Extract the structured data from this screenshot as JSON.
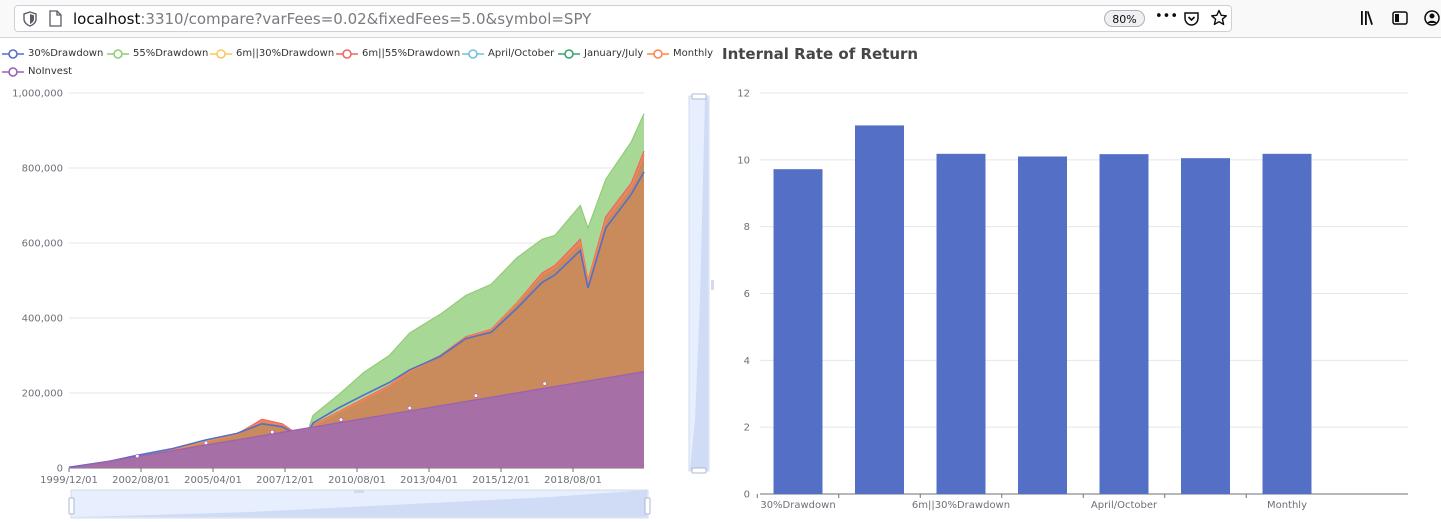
{
  "browser": {
    "url_host": "localhost",
    "url_rest": ":3310/compare?varFees=0.02&fixedFees=5.0&symbol=SPY",
    "zoom": "80%",
    "more_label": "•••"
  },
  "colors": {
    "series": [
      "#5470c6",
      "#91cc75",
      "#fac858",
      "#ee6666",
      "#73c0de",
      "#3ba272",
      "#fc8452",
      "#9a60b4"
    ],
    "bar": "#5470c6",
    "grid": "#e0e6f1",
    "axis_text": "#6e7079"
  },
  "chart_data": [
    {
      "type": "area",
      "title": "",
      "legend": [
        "30%Drawdown",
        "55%Drawdown",
        "6m||30%Drawdown",
        "6m||55%Drawdown",
        "April/October",
        "January/July",
        "Monthly",
        "NoInvest"
      ],
      "x_ticks": [
        "1999/12/01",
        "2002/08/01",
        "2005/04/01",
        "2007/12/01",
        "2010/08/01",
        "2013/04/01",
        "2015/12/01",
        "2018/08/01"
      ],
      "y_ticks": [
        "0",
        "200,000",
        "400,000",
        "600,000",
        "800,000",
        "1,000,000"
      ],
      "ylim": [
        0,
        1000000
      ],
      "x_years": [
        1999.92,
        2022.5
      ],
      "series": [
        {
          "name": "55%Drawdown",
          "x": [
            1999.92,
            2001.5,
            2002.6,
            2004.0,
            2005.3,
            2006.5,
            2007.5,
            2008.3,
            2008.9,
            2009.2,
            2009.5,
            2010.5,
            2011.5,
            2012.5,
            2013.3,
            2014.5,
            2015.5,
            2016.5,
            2017.5,
            2018.5,
            2019.0,
            2020.0,
            2020.3,
            2021.0,
            2022.0,
            2022.5
          ],
          "y": [
            2000,
            18000,
            30000,
            50000,
            72000,
            92000,
            118000,
            112000,
            85000,
            78000,
            140000,
            195000,
            255000,
            300000,
            360000,
            410000,
            460000,
            490000,
            560000,
            610000,
            620000,
            700000,
            640000,
            770000,
            870000,
            945000
          ]
        },
        {
          "name": "6m||55%Drawdown",
          "x": [
            1999.92,
            2001.5,
            2002.6,
            2004.0,
            2005.3,
            2006.5,
            2007.5,
            2008.3,
            2008.9,
            2009.2,
            2009.5,
            2010.5,
            2011.5,
            2012.5,
            2013.3,
            2014.5,
            2015.5,
            2016.5,
            2017.5,
            2018.5,
            2019.0,
            2020.0,
            2020.3,
            2021.0,
            2022.0,
            2022.5
          ],
          "y": [
            2000,
            16000,
            28000,
            48000,
            70000,
            90000,
            130000,
            118000,
            90000,
            82000,
            115000,
            150000,
            185000,
            220000,
            260000,
            300000,
            350000,
            370000,
            440000,
            520000,
            540000,
            610000,
            500000,
            670000,
            760000,
            845000
          ]
        },
        {
          "name": "Monthly",
          "x": [
            1999.92,
            2001.5,
            2002.6,
            2004.0,
            2005.3,
            2006.5,
            2007.5,
            2008.3,
            2008.9,
            2009.2,
            2009.5,
            2010.5,
            2011.5,
            2012.5,
            2013.3,
            2014.5,
            2015.5,
            2016.5,
            2017.5,
            2018.5,
            2019.0,
            2020.0,
            2020.3,
            2021.0,
            2022.0,
            2022.5
          ],
          "y": [
            2000,
            16000,
            28000,
            48000,
            70000,
            90000,
            125000,
            115000,
            88000,
            80000,
            112000,
            148000,
            182000,
            218000,
            258000,
            298000,
            348000,
            368000,
            438000,
            515000,
            535000,
            600000,
            495000,
            660000,
            750000,
            835000
          ]
        },
        {
          "name": "30%Drawdown",
          "x": [
            1999.92,
            2001.5,
            2002.6,
            2004.0,
            2005.3,
            2006.5,
            2007.5,
            2008.3,
            2008.9,
            2009.2,
            2009.5,
            2010.5,
            2011.5,
            2012.5,
            2013.3,
            2014.5,
            2015.5,
            2016.5,
            2017.5,
            2018.5,
            2019.0,
            2020.0,
            2020.3,
            2021.0,
            2022.0,
            2022.5
          ],
          "y": [
            2000,
            18000,
            34000,
            52000,
            75000,
            92000,
            118000,
            110000,
            88000,
            80000,
            120000,
            160000,
            195000,
            228000,
            262000,
            298000,
            345000,
            362000,
            425000,
            495000,
            515000,
            580000,
            480000,
            640000,
            730000,
            790000
          ]
        },
        {
          "name": "NoInvest",
          "x": [
            1999.92,
            2022.5
          ],
          "y": [
            0,
            257000
          ]
        }
      ],
      "markers": [
        {
          "x": 2002.6,
          "y": 32000
        },
        {
          "x": 2005.3,
          "y": 67000
        },
        {
          "x": 2007.9,
          "y": 96000
        },
        {
          "x": 2010.6,
          "y": 129000
        },
        {
          "x": 2013.3,
          "y": 160000
        },
        {
          "x": 2015.9,
          "y": 193000
        },
        {
          "x": 2018.6,
          "y": 225000
        }
      ]
    },
    {
      "type": "bar",
      "title": "Internal Rate of Return",
      "categories": [
        "30%Drawdown",
        "55%Drawdown",
        "6m||30%Drawdown",
        "6m||55%Drawdown",
        "April/October",
        "January/July",
        "Monthly"
      ],
      "x_tick_labels": [
        "30%Drawdown",
        "",
        "6m||30%Drawdown",
        "",
        "April/October",
        "",
        "Monthly"
      ],
      "values": [
        9.72,
        11.03,
        10.18,
        10.1,
        10.17,
        10.05,
        10.18
      ],
      "y_ticks": [
        "0",
        "2",
        "4",
        "6",
        "8",
        "10",
        "12"
      ],
      "ylim": [
        0,
        12
      ]
    }
  ]
}
